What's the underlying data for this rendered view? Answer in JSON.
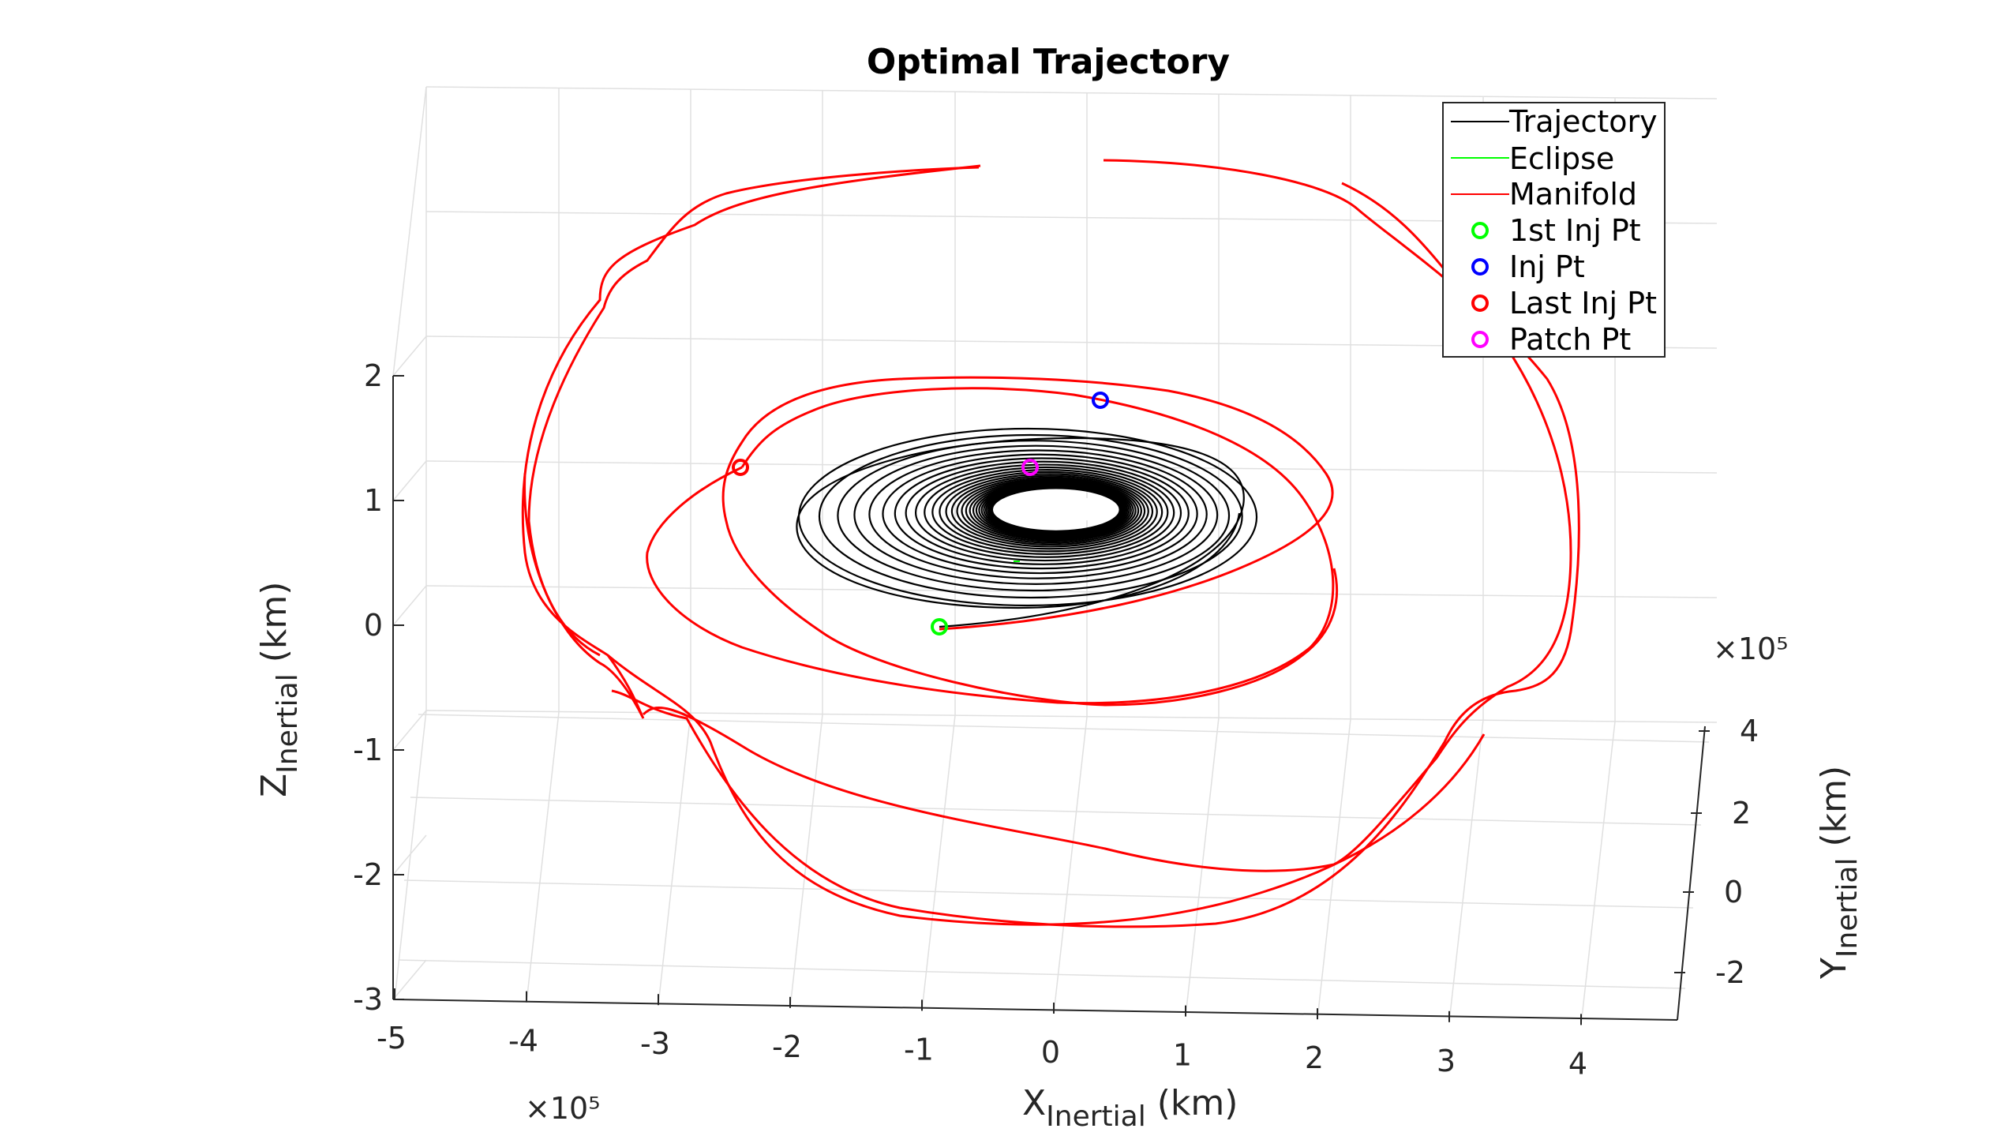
{
  "chart_data": {
    "type": "line",
    "title": "Optimal Trajectory",
    "xlabel": {
      "main": "X",
      "sub": "Inertial",
      "unit": " (km)"
    },
    "ylabel": {
      "main": "Y",
      "sub": "Inertial",
      "unit": " (km)"
    },
    "zlabel": {
      "main": "Z",
      "sub": "Inertial",
      "unit": " (km)"
    },
    "x_exponent": "×10⁵",
    "y_exponent": "×10⁵",
    "x_ticks": [
      "-5",
      "-4",
      "-3",
      "-2",
      "-1",
      "0",
      "1",
      "2",
      "3",
      "4"
    ],
    "y_ticks": [
      "-2",
      "0",
      "2",
      "4"
    ],
    "z_ticks": [
      "-3",
      "-2",
      "-1",
      "0",
      "1",
      "2"
    ],
    "legend_position": "top-right",
    "grid": true,
    "series": [
      {
        "name": "Trajectory",
        "color": "#000000",
        "kind": "line"
      },
      {
        "name": "Eclipse",
        "color": "#00ff00",
        "kind": "line"
      },
      {
        "name": "Manifold",
        "color": "#ff0000",
        "kind": "line"
      },
      {
        "name": "1st Inj Pt",
        "color": "#00ff00",
        "kind": "marker",
        "x": -0.8,
        "y": -0.1,
        "z": 0.0
      },
      {
        "name": "Inj Pt",
        "color": "#0000ff",
        "kind": "marker",
        "x": 0.45,
        "y": 1.2,
        "z": 1.8
      },
      {
        "name": "Last Inj Pt",
        "color": "#ff0000",
        "kind": "marker",
        "x": -2.3,
        "y": 0.8,
        "z": 1.25
      },
      {
        "name": "Patch Pt",
        "color": "#ff00ff",
        "kind": "marker",
        "x": -0.1,
        "y": 0.3,
        "z": 1.25
      }
    ]
  }
}
